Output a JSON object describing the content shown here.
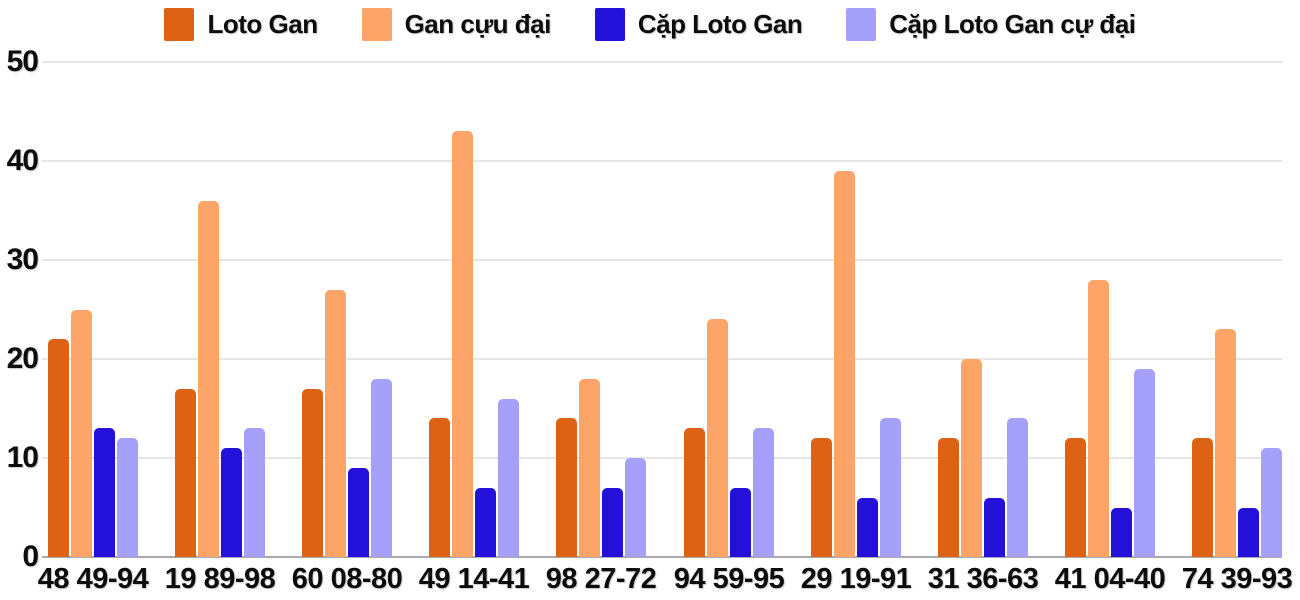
{
  "chart_data": {
    "type": "bar",
    "title": "",
    "categories": [
      "48 49-94",
      "19 89-98",
      "60 08-80",
      "49 14-41",
      "98 27-72",
      "94 59-95",
      "29 19-91",
      "31 36-63",
      "41 04-40",
      "74 39-93"
    ],
    "series": [
      {
        "name": "Loto Gan",
        "color": "#de6214",
        "values": [
          22,
          17,
          17,
          14,
          14,
          13,
          12,
          12,
          12,
          12
        ]
      },
      {
        "name": "Gan cựu đại",
        "color": "#fda469",
        "values": [
          25,
          36,
          27,
          43,
          18,
          24,
          39,
          20,
          28,
          23
        ]
      },
      {
        "name": "Cặp Loto Gan",
        "color": "#2411d9",
        "values": [
          13,
          11,
          9,
          7,
          7,
          7,
          6,
          6,
          5,
          5
        ]
      },
      {
        "name": "Cặp Loto Gan cự đại",
        "color": "#a5a0fa",
        "values": [
          12,
          13,
          18,
          16,
          10,
          13,
          14,
          14,
          19,
          11
        ]
      }
    ],
    "y_ticks": [
      0,
      10,
      20,
      30,
      40,
      50
    ],
    "ylim": [
      0,
      50
    ],
    "xlabel": "",
    "ylabel": "",
    "grid": "horizontal",
    "legend_position": "top",
    "colors": {
      "grid": "#e6e6e6",
      "baseline": "#a8a8ad",
      "text": "#0c0c0c",
      "background": "#ffffff"
    }
  }
}
